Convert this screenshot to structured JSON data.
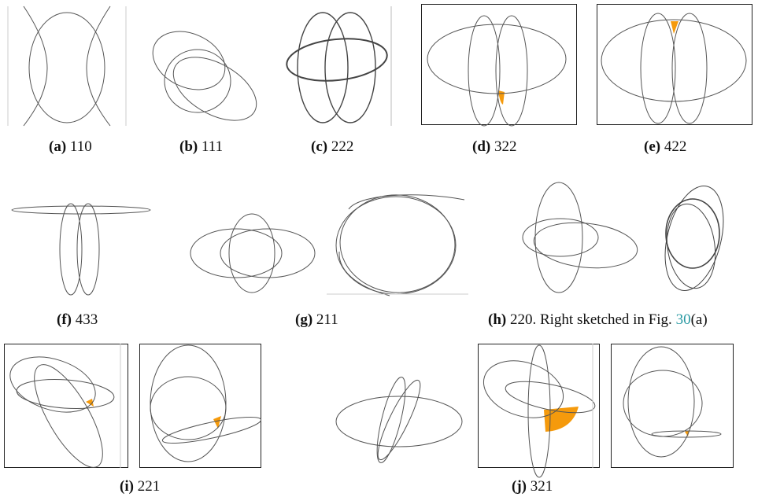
{
  "figure": {
    "panels": [
      {
        "id": "a",
        "letter": "(a)",
        "label": "110"
      },
      {
        "id": "b",
        "letter": "(b)",
        "label": "111"
      },
      {
        "id": "c",
        "letter": "(c)",
        "label": "222"
      },
      {
        "id": "d",
        "letter": "(d)",
        "label": "322"
      },
      {
        "id": "e",
        "letter": "(e)",
        "label": "422"
      },
      {
        "id": "f",
        "letter": "(f)",
        "label": "433"
      },
      {
        "id": "g",
        "letter": "(g)",
        "label": "211"
      },
      {
        "id": "h",
        "letter": "(h)",
        "label": "220. Right sketched in Fig.",
        "ref": "30",
        "ref_suffix": "(a)"
      },
      {
        "id": "i",
        "letter": "(i)",
        "label": "221"
      },
      {
        "id": "j",
        "letter": "(j)",
        "label": "321"
      }
    ],
    "colors": {
      "stroke": "#555555",
      "highlight": "#f59a0c",
      "frame": "#222222"
    }
  }
}
